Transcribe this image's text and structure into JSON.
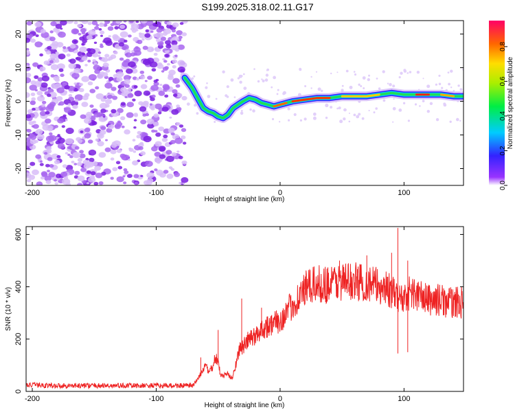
{
  "title": "S199.2025.318.02.11.G17",
  "chart_data": [
    {
      "type": "heatmap",
      "name": "spectrogram",
      "xlabel": "Height of straight line (km)",
      "ylabel": "Frequency (Hz)",
      "xlim": [
        -205,
        148
      ],
      "ylim": [
        -25,
        24
      ],
      "xticks": [
        -200,
        -100,
        0,
        100
      ],
      "yticks": [
        -20,
        -10,
        0,
        10,
        20
      ],
      "colorbar": {
        "label": "Normalized spectral amplitude",
        "range": [
          0.0,
          0.95
        ],
        "ticks": [
          0.0,
          0.2,
          0.4,
          0.6,
          0.8
        ]
      },
      "noise_region_x": [
        -205,
        -77
      ],
      "ridge": [
        {
          "x": -77,
          "y": 7.0
        },
        {
          "x": -74,
          "y": 5.5
        },
        {
          "x": -71,
          "y": 4.0
        },
        {
          "x": -68,
          "y": 2.0
        },
        {
          "x": -65,
          "y": 0.0
        },
        {
          "x": -62,
          "y": -2.0
        },
        {
          "x": -58,
          "y": -3.0
        },
        {
          "x": -54,
          "y": -3.5
        },
        {
          "x": -50,
          "y": -4.5
        },
        {
          "x": -46,
          "y": -5.0
        },
        {
          "x": -42,
          "y": -4.0
        },
        {
          "x": -38,
          "y": -2.0
        },
        {
          "x": -34,
          "y": -1.0
        },
        {
          "x": -30,
          "y": 0.0
        },
        {
          "x": -25,
          "y": 1.0
        },
        {
          "x": -20,
          "y": 0.5
        },
        {
          "x": -15,
          "y": -0.5
        },
        {
          "x": -10,
          "y": -1.0
        },
        {
          "x": -5,
          "y": -1.5
        },
        {
          "x": 0,
          "y": -1.0
        },
        {
          "x": 5,
          "y": -0.5
        },
        {
          "x": 10,
          "y": 0.0
        },
        {
          "x": 20,
          "y": 0.5
        },
        {
          "x": 30,
          "y": 1.0
        },
        {
          "x": 40,
          "y": 1.0
        },
        {
          "x": 50,
          "y": 1.5
        },
        {
          "x": 60,
          "y": 1.5
        },
        {
          "x": 70,
          "y": 1.5
        },
        {
          "x": 80,
          "y": 2.0
        },
        {
          "x": 90,
          "y": 2.5
        },
        {
          "x": 100,
          "y": 2.0
        },
        {
          "x": 110,
          "y": 2.0
        },
        {
          "x": 120,
          "y": 2.0
        },
        {
          "x": 130,
          "y": 2.0
        },
        {
          "x": 140,
          "y": 1.5
        },
        {
          "x": 148,
          "y": 1.5
        }
      ]
    },
    {
      "type": "line",
      "name": "snr",
      "xlabel": "Height of straight line (km)",
      "ylabel": "SNR (10 * v/v)",
      "xlim": [
        -205,
        148
      ],
      "ylim": [
        0,
        630
      ],
      "xticks": [
        -200,
        -100,
        0,
        100
      ],
      "yticks": [
        0,
        200,
        400,
        600
      ],
      "color": "#ee2222",
      "series": [
        {
          "name": "SNR",
          "x": [
            -205,
            -180,
            -150,
            -120,
            -90,
            -75,
            -70,
            -65,
            -62,
            -60,
            -58,
            -55,
            -52,
            -50,
            -48,
            -45,
            -42,
            -40,
            -38,
            -35,
            -33,
            -30,
            -25,
            -20,
            -15,
            -10,
            -5,
            0,
            5,
            10,
            15,
            20,
            25,
            30,
            35,
            40,
            45,
            50,
            55,
            60,
            65,
            70,
            75,
            80,
            85,
            90,
            93,
            95,
            97,
            100,
            105,
            110,
            115,
            120,
            125,
            130,
            135,
            140,
            148
          ],
          "y": [
            25,
            22,
            22,
            22,
            22,
            22,
            22,
            60,
            80,
            110,
            70,
            90,
            130,
            110,
            60,
            60,
            70,
            50,
            60,
            120,
            160,
            170,
            200,
            210,
            240,
            250,
            260,
            270,
            300,
            330,
            360,
            390,
            400,
            410,
            410,
            410,
            420,
            420,
            420,
            420,
            420,
            410,
            410,
            400,
            400,
            380,
            360,
            370,
            350,
            360,
            380,
            370,
            360,
            350,
            350,
            350,
            340,
            340,
            340
          ],
          "spikes": [
            {
              "x": -64,
              "y": 130
            },
            {
              "x": -50,
              "y": 235
            },
            {
              "x": -31,
              "y": 355
            },
            {
              "x": -15,
              "y": 320
            },
            {
              "x": 20,
              "y": 430
            },
            {
              "x": 48,
              "y": 500
            },
            {
              "x": 70,
              "y": 520
            },
            {
              "x": 90,
              "y": 530
            },
            {
              "x": 95,
              "y": 625
            },
            {
              "x": 95,
              "y": 145
            },
            {
              "x": 103,
              "y": 500
            },
            {
              "x": 103,
              "y": 150
            }
          ]
        }
      ]
    }
  ]
}
